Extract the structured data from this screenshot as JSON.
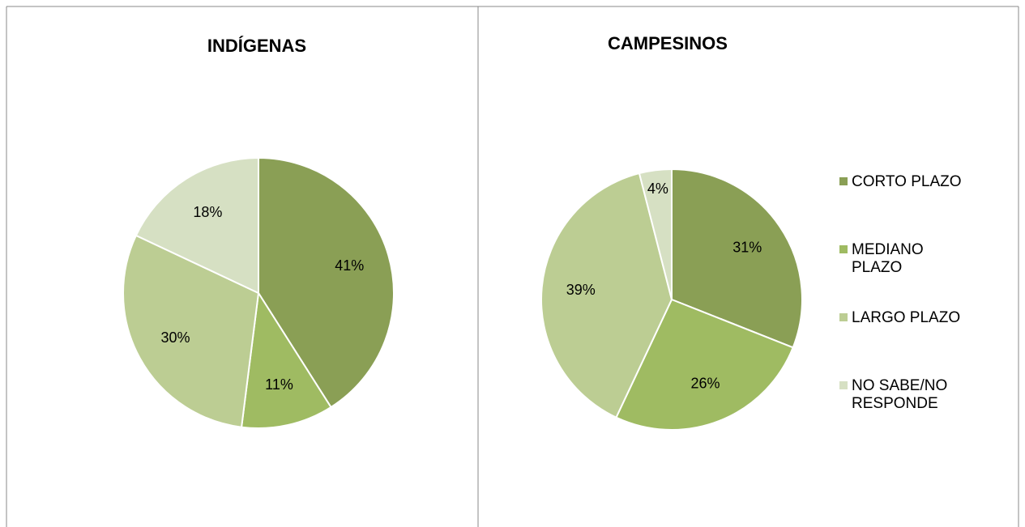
{
  "chart_data": [
    {
      "type": "pie",
      "title": "INDÍGENAS",
      "values": [
        41,
        11,
        30,
        18
      ],
      "value_labels": [
        "41%",
        "11%",
        "30%",
        "18%"
      ],
      "colors": [
        "#8a9f55",
        "#9fbb62",
        "#bccd93",
        "#d6e0c3"
      ]
    },
    {
      "type": "pie",
      "title": "CAMPESINOS",
      "categories": [
        "CORTO PLAZO",
        "MEDIANO PLAZO",
        "LARGO PLAZO",
        "NO SABE/NO RESPONDE"
      ],
      "values": [
        31,
        26,
        39,
        4
      ],
      "value_labels": [
        "31%",
        "26%",
        "39%",
        "4%"
      ],
      "colors": [
        "#8a9f55",
        "#9fbb62",
        "#bccd93",
        "#d6e0c3"
      ],
      "legend": "right"
    }
  ]
}
